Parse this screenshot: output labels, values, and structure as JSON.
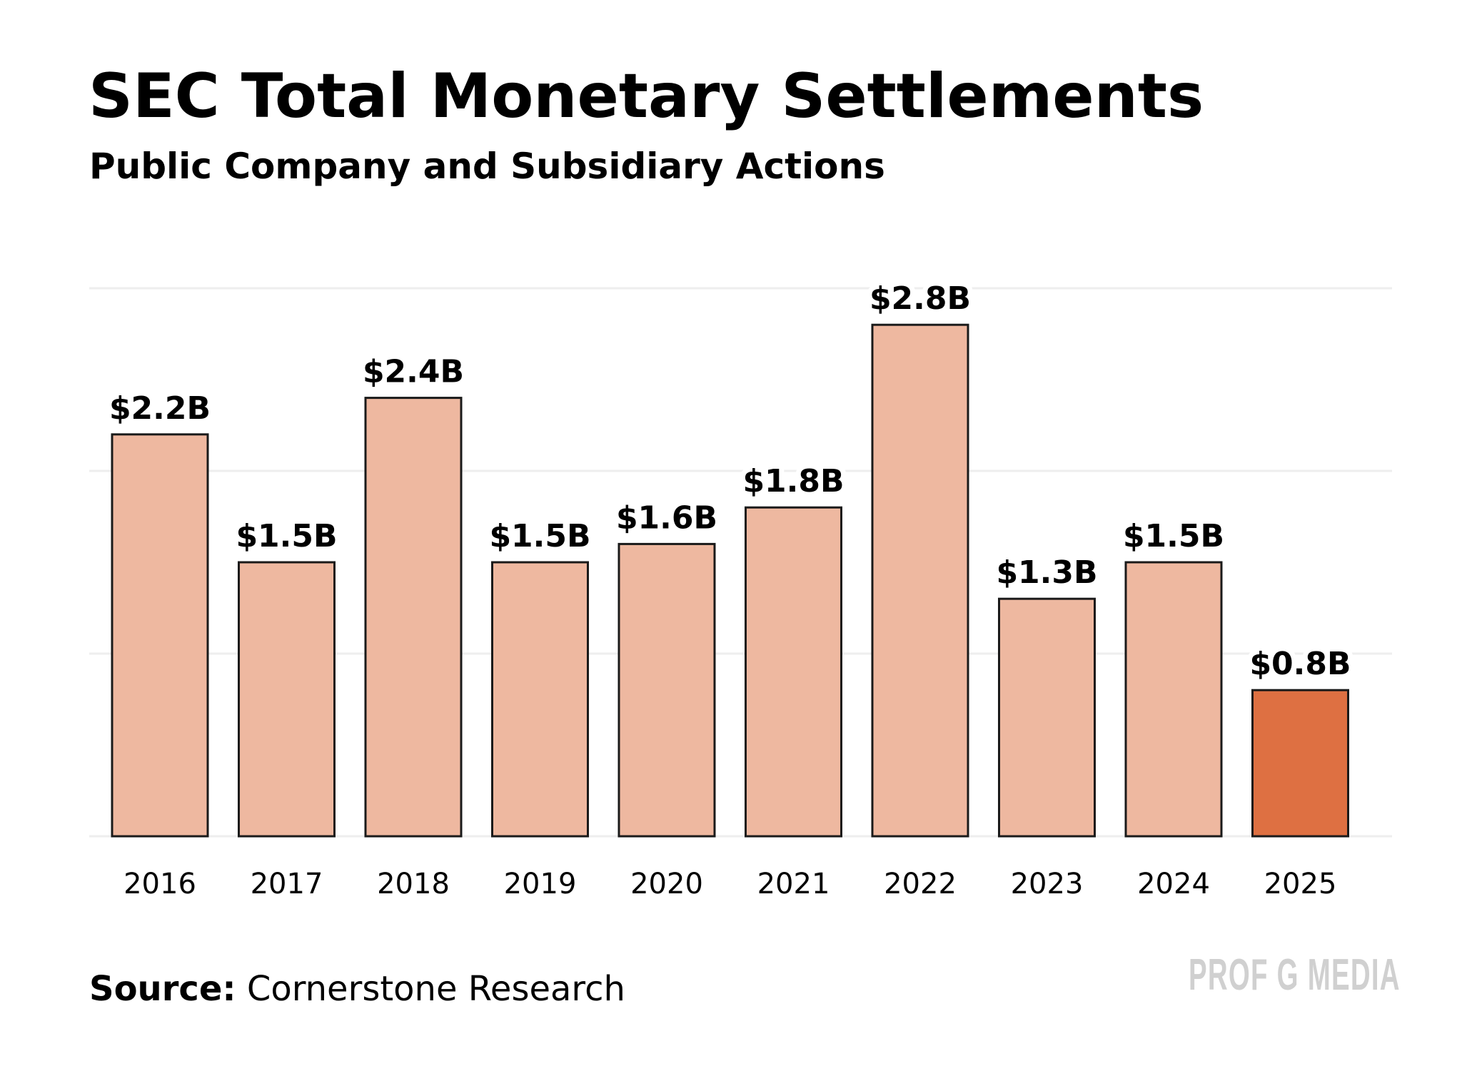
{
  "chart_data": {
    "type": "bar",
    "title": "SEC Total Monetary Settlements",
    "subtitle": "Public Company and Subsidiary Actions",
    "categories": [
      "2016",
      "2017",
      "2018",
      "2019",
      "2020",
      "2021",
      "2022",
      "2023",
      "2024",
      "2025"
    ],
    "values": [
      2.2,
      1.5,
      2.4,
      1.5,
      1.6,
      1.8,
      2.8,
      1.3,
      1.5,
      0.8
    ],
    "data_labels": [
      "$2.2B",
      "$1.5B",
      "$2.4B",
      "$1.5B",
      "$1.6B",
      "$1.8B",
      "$2.8B",
      "$1.3B",
      "$1.5B",
      "$0.8B"
    ],
    "xlabel": "",
    "ylabel": "",
    "ylim": [
      0,
      3
    ],
    "gridlines": [
      0,
      1,
      2,
      3
    ],
    "grid": true,
    "colors": {
      "bar": "#eeb8a0",
      "highlight": "#de7042",
      "outline": "#1a1a1a",
      "grid": "#eeeeee"
    },
    "highlight_category": "2025"
  },
  "source": {
    "label": "Source:",
    "text": "Cornerstone Research"
  },
  "logo": "PROF G MEDIA"
}
